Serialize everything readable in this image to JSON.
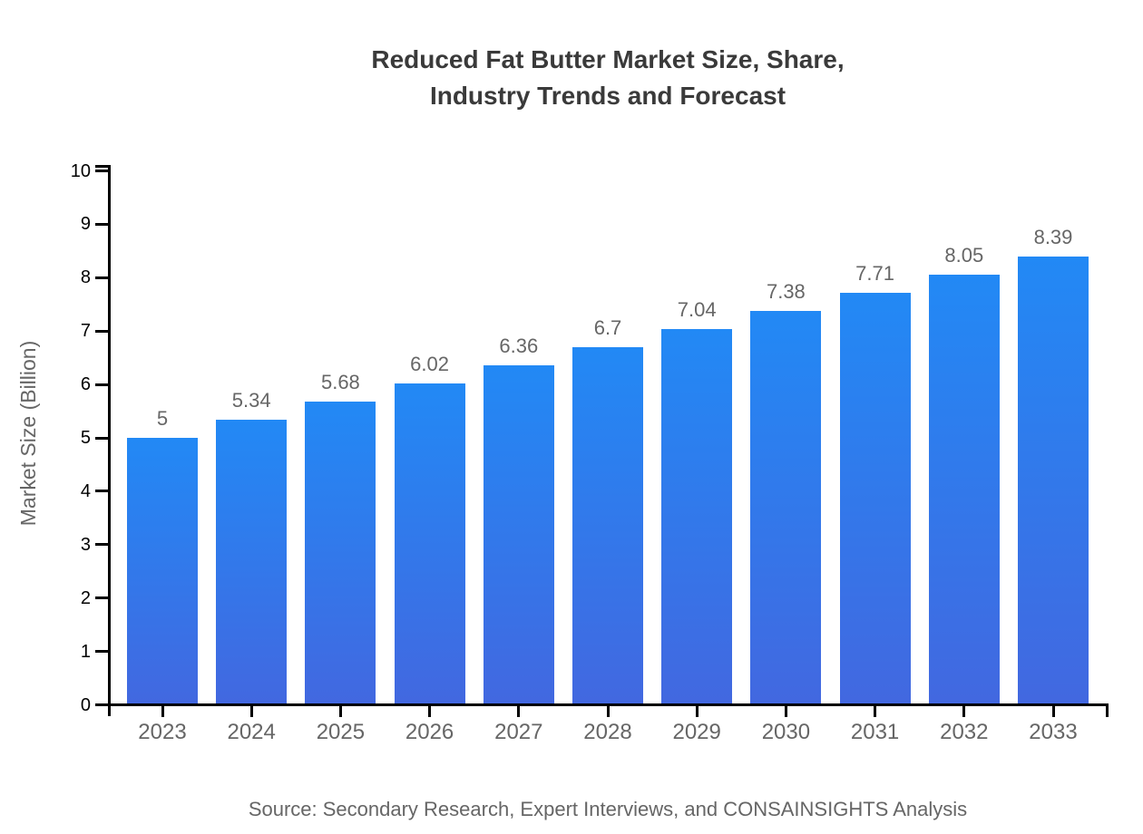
{
  "chart_data": {
    "type": "bar",
    "title": "Reduced Fat Butter Market Size, Share,\nIndustry Trends and Forecast",
    "categories": [
      "2023",
      "2024",
      "2025",
      "2026",
      "2027",
      "2028",
      "2029",
      "2030",
      "2031",
      "2032",
      "2033"
    ],
    "values": [
      5,
      5.34,
      5.68,
      6.02,
      6.36,
      6.7,
      7.04,
      7.38,
      7.71,
      8.05,
      8.39
    ],
    "value_labels": [
      "5",
      "5.34",
      "5.68",
      "6.02",
      "6.36",
      "6.7",
      "7.04",
      "7.38",
      "7.71",
      "8.05",
      "8.39"
    ],
    "xlabel": "",
    "ylabel": "Market Size (Billion)",
    "ylim": [
      0,
      10
    ],
    "yticks": [
      0,
      1,
      2,
      3,
      4,
      5,
      6,
      7,
      8,
      9,
      10
    ],
    "grid": false,
    "legend": false,
    "bar_color_top": "#2289f5",
    "bar_color_bottom": "#4268e0",
    "source_note": "Source: Secondary Research, Expert Interviews, and CONSAINSIGHTS Analysis"
  },
  "colors": {
    "title_text": "#3a3a3a",
    "axis_line": "#000000",
    "y_tick_label": "#000000",
    "x_tick_label": "#666666",
    "value_label": "#666666",
    "axis_title_text": "#666666",
    "source_text": "#666666"
  }
}
